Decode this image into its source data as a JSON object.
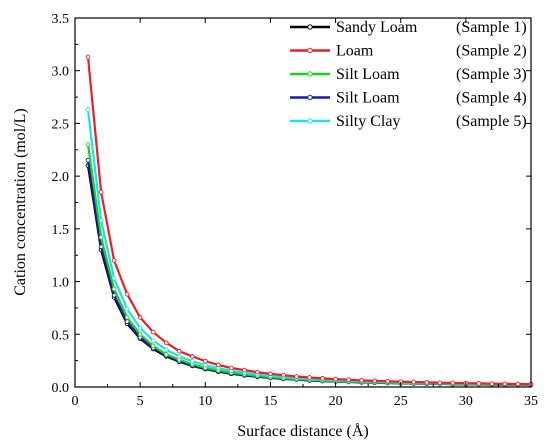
{
  "chart_data": {
    "type": "line",
    "title": "",
    "xlabel": "Surface distance  (Å)",
    "ylabel": "Cation concentration (mol/L)",
    "xlim": [
      0,
      35
    ],
    "ylim": [
      0,
      3.5
    ],
    "x_ticks": [
      0,
      5,
      10,
      15,
      20,
      25,
      30,
      35
    ],
    "y_ticks": [
      0.0,
      0.5,
      1.0,
      1.5,
      2.0,
      2.5,
      3.0,
      3.5
    ],
    "x_tick_labels": [
      "0",
      "5",
      "10",
      "15",
      "20",
      "25",
      "30",
      "35"
    ],
    "y_tick_labels": [
      "0.0",
      "0.5",
      "1.0",
      "1.5",
      "2.0",
      "2.5",
      "3.0",
      "3.5"
    ],
    "grid": false,
    "legend_position": "top-right",
    "x": [
      1,
      2,
      3,
      4,
      5,
      6,
      7,
      8,
      9,
      10,
      11,
      12,
      13,
      14,
      15,
      16,
      17,
      18,
      19,
      20,
      21,
      22,
      23,
      24,
      25,
      26,
      27,
      28,
      29,
      30,
      31,
      32,
      33,
      34,
      35
    ],
    "series": [
      {
        "name": "Sandy Loam",
        "sample": "(Sample 1)",
        "color": "#000000",
        "values": [
          2.1,
          1.3,
          0.85,
          0.6,
          0.46,
          0.36,
          0.29,
          0.24,
          0.2,
          0.17,
          0.145,
          0.125,
          0.11,
          0.097,
          0.086,
          0.077,
          0.07,
          0.063,
          0.057,
          0.052,
          0.048,
          0.044,
          0.041,
          0.038,
          0.035,
          0.033,
          0.031,
          0.029,
          0.027,
          0.025,
          0.024,
          0.022,
          0.021,
          0.02,
          0.019
        ]
      },
      {
        "name": "Loam",
        "sample": "(Sample 2)",
        "color": "#e8202a",
        "values": [
          3.13,
          1.85,
          1.2,
          0.88,
          0.66,
          0.52,
          0.42,
          0.34,
          0.29,
          0.245,
          0.21,
          0.18,
          0.16,
          0.14,
          0.125,
          0.112,
          0.1,
          0.09,
          0.082,
          0.075,
          0.069,
          0.063,
          0.058,
          0.054,
          0.05,
          0.047,
          0.044,
          0.041,
          0.038,
          0.036,
          0.034,
          0.032,
          0.03,
          0.028,
          0.027
        ]
      },
      {
        "name": "Silt Loam",
        "sample": "(Sample 3)",
        "color": "#1ed01e",
        "values": [
          2.3,
          1.42,
          0.93,
          0.66,
          0.5,
          0.39,
          0.31,
          0.26,
          0.215,
          0.183,
          0.157,
          0.136,
          0.12,
          0.105,
          0.093,
          0.083,
          0.075,
          0.068,
          0.062,
          0.056,
          0.052,
          0.048,
          0.044,
          0.041,
          0.038,
          0.036,
          0.033,
          0.031,
          0.029,
          0.027,
          0.026,
          0.024,
          0.023,
          0.022,
          0.021
        ]
      },
      {
        "name": "Silt Loam",
        "sample": "(Sample 4)",
        "color": "#1a1aa6",
        "values": [
          2.15,
          1.33,
          0.87,
          0.62,
          0.47,
          0.37,
          0.3,
          0.245,
          0.205,
          0.174,
          0.149,
          0.129,
          0.113,
          0.1,
          0.089,
          0.079,
          0.071,
          0.064,
          0.058,
          0.053,
          0.049,
          0.045,
          0.042,
          0.039,
          0.036,
          0.034,
          0.032,
          0.03,
          0.028,
          0.026,
          0.025,
          0.023,
          0.022,
          0.021,
          0.02
        ]
      },
      {
        "name": "Silty Clay",
        "sample": "(Sample 5)",
        "color": "#22e0e8",
        "values": [
          2.63,
          1.58,
          1.03,
          0.74,
          0.56,
          0.44,
          0.355,
          0.29,
          0.245,
          0.208,
          0.178,
          0.155,
          0.136,
          0.12,
          0.106,
          0.095,
          0.086,
          0.078,
          0.071,
          0.065,
          0.059,
          0.055,
          0.051,
          0.047,
          0.044,
          0.041,
          0.038,
          0.036,
          0.034,
          0.032,
          0.03,
          0.028,
          0.027,
          0.025,
          0.024
        ]
      }
    ]
  }
}
